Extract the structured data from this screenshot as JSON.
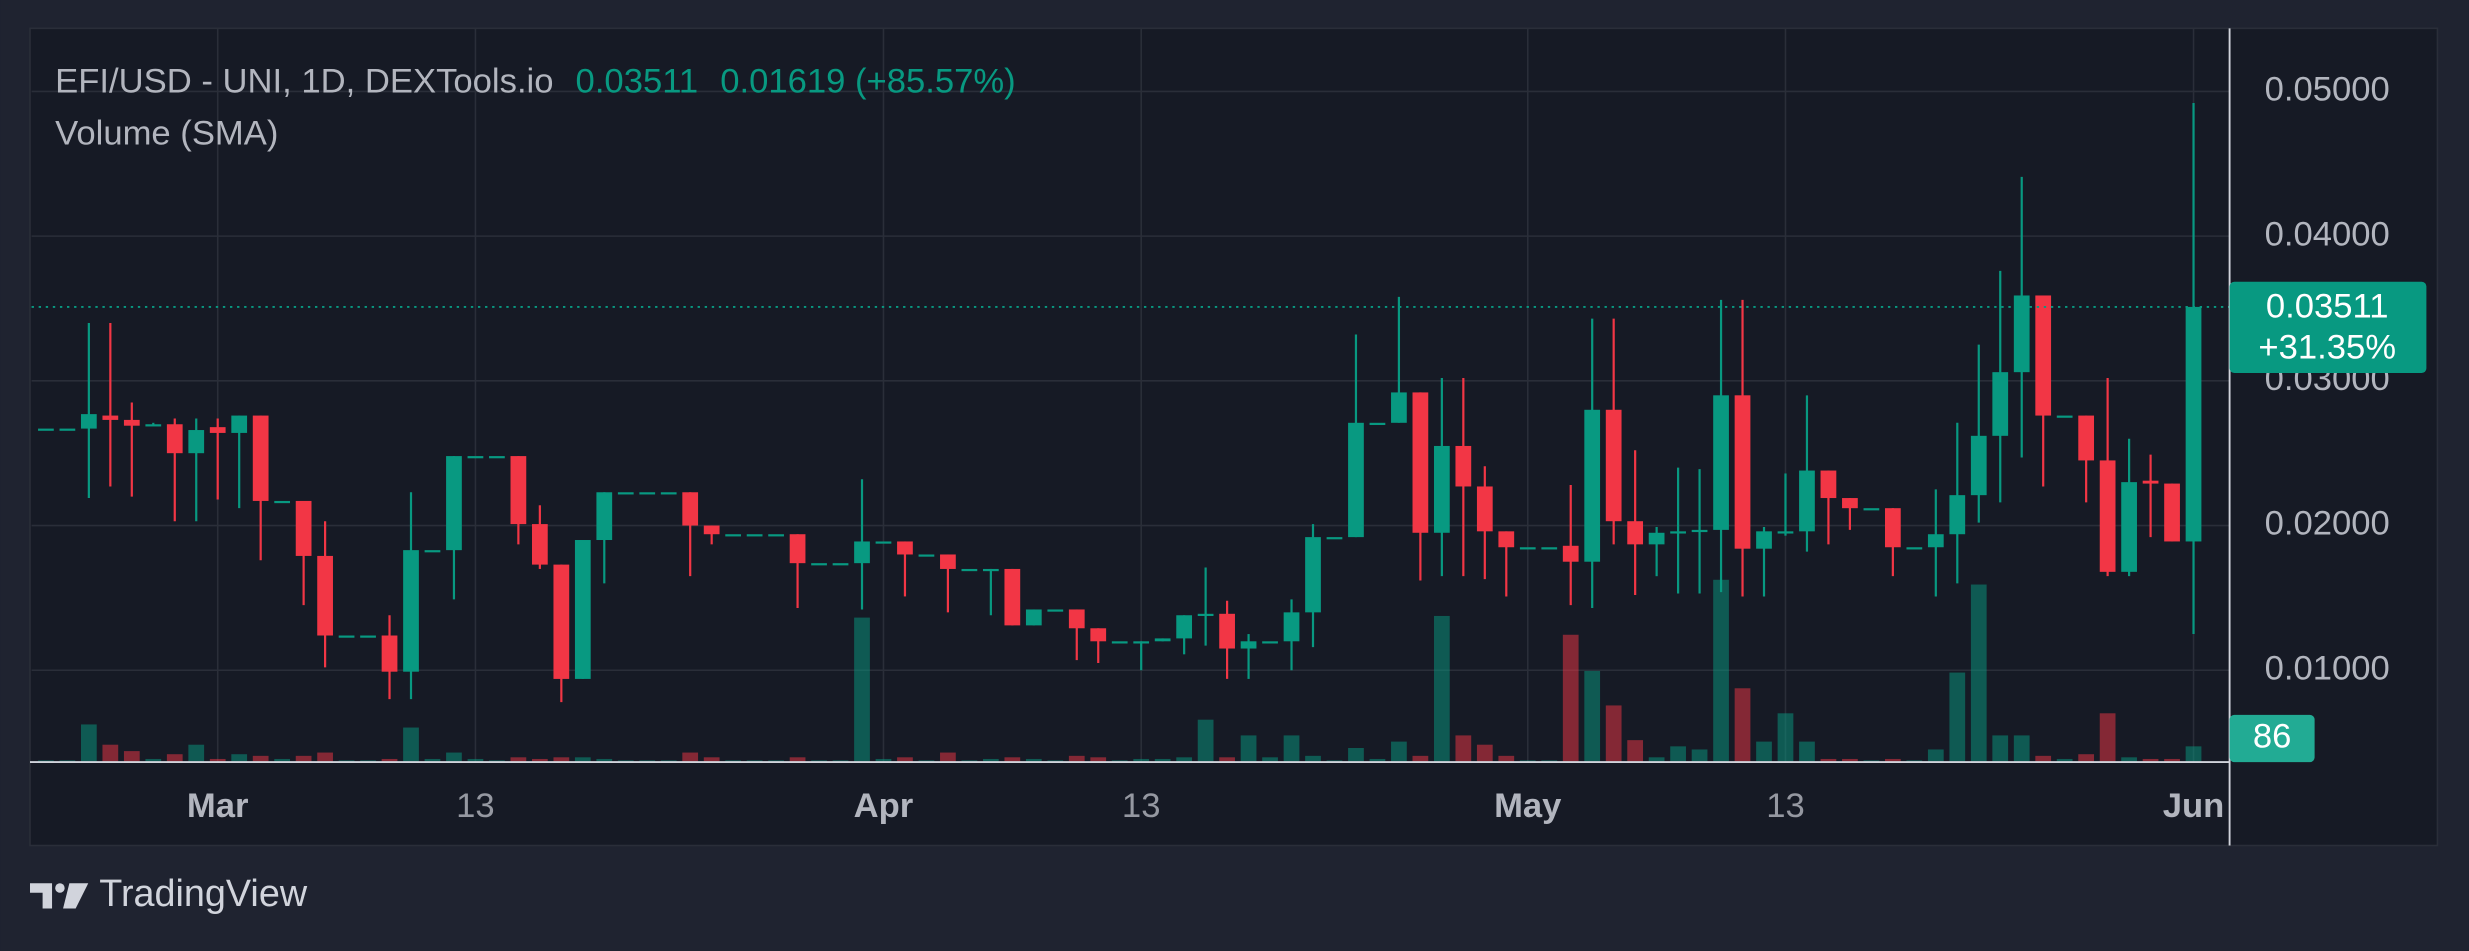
{
  "chart_data": {
    "type": "candlestick",
    "title": "EFI/USD - UNI, 1D, DEXTools.io",
    "change_label": "0.01619 (+85.57%)",
    "volume_label": "Volume (SMA)",
    "last_change_label": "+31.35%",
    "brand": "TradingView",
    "up_color": "#089981",
    "down_color": "#f23645",
    "grid": true,
    "x": [
      "Feb 21",
      "Feb 22",
      "Feb 23",
      "Feb 24",
      "Feb 25",
      "Feb 26",
      "Feb 27",
      "Feb 28",
      "Mar 1",
      "Mar 2",
      "Mar 3",
      "Mar 4",
      "Mar 5",
      "Mar 6",
      "Mar 7",
      "Mar 8",
      "Mar 9",
      "Mar 10",
      "Mar 11",
      "Mar 12",
      "Mar 13",
      "Mar 14",
      "Mar 15",
      "Mar 16",
      "Mar 17",
      "Mar 18",
      "Mar 19",
      "Mar 20",
      "Mar 21",
      "Mar 22",
      "Mar 23",
      "Mar 24",
      "Mar 25",
      "Mar 26",
      "Mar 27",
      "Mar 28",
      "Mar 29",
      "Mar 30",
      "Mar 31",
      "Apr 1",
      "Apr 2",
      "Apr 3",
      "Apr 4",
      "Apr 5",
      "Apr 6",
      "Apr 7",
      "Apr 8",
      "Apr 9",
      "Apr 10",
      "Apr 11",
      "Apr 12",
      "Apr 13",
      "Apr 14",
      "Apr 15",
      "Apr 16",
      "Apr 17",
      "Apr 18",
      "Apr 19",
      "Apr 20",
      "Apr 21",
      "Apr 22",
      "Apr 23",
      "Apr 24",
      "Apr 25",
      "Apr 26",
      "Apr 27",
      "Apr 28",
      "Apr 29",
      "Apr 30",
      "May 1",
      "May 2",
      "May 3",
      "May 4",
      "May 5",
      "May 6",
      "May 7",
      "May 8",
      "May 9",
      "May 10",
      "May 11",
      "May 12",
      "May 13",
      "May 14",
      "May 15",
      "May 16",
      "May 17",
      "May 18",
      "May 19",
      "May 20",
      "May 21",
      "May 22",
      "May 23",
      "May 24",
      "May 25",
      "May 26",
      "May 27",
      "May 28",
      "May 29",
      "May 30",
      "May 31",
      "Jun 1"
    ],
    "open": [
      0.0267,
      0.0267,
      0.0267,
      0.0276,
      0.0273,
      0.027,
      0.027,
      0.025,
      0.0268,
      0.0264,
      0.0276,
      0.0217,
      0.0217,
      0.0179,
      0.0124,
      0.0124,
      0.0124,
      0.0099,
      0.0183,
      0.0183,
      0.0248,
      0.0248,
      0.0248,
      0.0201,
      0.0173,
      0.0094,
      0.019,
      0.0223,
      0.0223,
      0.0223,
      0.0223,
      0.02,
      0.0194,
      0.0194,
      0.0194,
      0.0194,
      0.0174,
      0.0174,
      0.0174,
      0.0189,
      0.0189,
      0.018,
      0.018,
      0.017,
      0.017,
      0.017,
      0.0131,
      0.0142,
      0.0142,
      0.0129,
      0.012,
      0.012,
      0.012,
      0.0122,
      0.0138,
      0.0139,
      0.0115,
      0.012,
      0.012,
      0.014,
      0.0192,
      0.0192,
      0.0271,
      0.0271,
      0.0292,
      0.0195,
      0.0255,
      0.0227,
      0.0196,
      0.0185,
      0.0185,
      0.0186,
      0.0175,
      0.028,
      0.0203,
      0.0187,
      0.0195,
      0.0196,
      0.0197,
      0.029,
      0.0184,
      0.0196,
      0.0196,
      0.0238,
      0.0219,
      0.0212,
      0.0212,
      0.0185,
      0.0185,
      0.0194,
      0.0221,
      0.0262,
      0.0306,
      0.0359,
      0.0276,
      0.0276,
      0.0245,
      0.0168,
      0.0231,
      0.0229,
      0.0189
    ],
    "high": [
      0.0267,
      0.0267,
      0.034,
      0.034,
      0.0285,
      0.0271,
      0.0274,
      0.0274,
      0.0274,
      0.0276,
      0.0276,
      0.0217,
      0.0217,
      0.0203,
      0.0124,
      0.0124,
      0.0138,
      0.0223,
      0.0183,
      0.0248,
      0.0248,
      0.0248,
      0.0248,
      0.0214,
      0.0173,
      0.019,
      0.0223,
      0.0223,
      0.0223,
      0.0223,
      0.0223,
      0.02,
      0.0194,
      0.0194,
      0.0194,
      0.0194,
      0.0174,
      0.0174,
      0.0232,
      0.0189,
      0.0189,
      0.018,
      0.018,
      0.017,
      0.017,
      0.017,
      0.0142,
      0.0142,
      0.0142,
      0.0129,
      0.012,
      0.012,
      0.0122,
      0.0138,
      0.0171,
      0.0148,
      0.0125,
      0.012,
      0.0149,
      0.0201,
      0.0192,
      0.0332,
      0.0271,
      0.0358,
      0.0292,
      0.0302,
      0.0302,
      0.0241,
      0.0196,
      0.0185,
      0.0185,
      0.0228,
      0.0343,
      0.0343,
      0.0252,
      0.0199,
      0.024,
      0.0239,
      0.0356,
      0.0356,
      0.0199,
      0.0236,
      0.029,
      0.0238,
      0.0219,
      0.0212,
      0.0212,
      0.0185,
      0.0225,
      0.0271,
      0.0325,
      0.0376,
      0.0441,
      0.0359,
      0.0276,
      0.0276,
      0.0302,
      0.026,
      0.0249,
      0.0229,
      0.0492
    ],
    "low": [
      0.0267,
      0.0267,
      0.0219,
      0.0227,
      0.022,
      0.0269,
      0.0203,
      0.0203,
      0.0218,
      0.0212,
      0.0176,
      0.0217,
      0.0145,
      0.0102,
      0.0124,
      0.0124,
      0.008,
      0.008,
      0.0183,
      0.0149,
      0.0248,
      0.0248,
      0.0187,
      0.017,
      0.0078,
      0.0094,
      0.016,
      0.0223,
      0.0223,
      0.0223,
      0.0165,
      0.0187,
      0.0194,
      0.0194,
      0.0194,
      0.0143,
      0.0174,
      0.0174,
      0.0142,
      0.0189,
      0.0151,
      0.018,
      0.014,
      0.017,
      0.0138,
      0.0131,
      0.0131,
      0.0142,
      0.0107,
      0.0105,
      0.012,
      0.01,
      0.012,
      0.0111,
      0.0117,
      0.0094,
      0.0094,
      0.012,
      0.01,
      0.0116,
      0.0192,
      0.0192,
      0.0271,
      0.0271,
      0.0162,
      0.0165,
      0.0165,
      0.0163,
      0.0151,
      0.0185,
      0.0185,
      0.0145,
      0.0143,
      0.0187,
      0.0152,
      0.0165,
      0.0153,
      0.0153,
      0.0154,
      0.0151,
      0.0151,
      0.0193,
      0.0182,
      0.0187,
      0.0197,
      0.0212,
      0.0165,
      0.0185,
      0.0151,
      0.016,
      0.0202,
      0.0216,
      0.0247,
      0.0227,
      0.0276,
      0.0216,
      0.0165,
      0.0165,
      0.0192,
      0.0189,
      0.0125
    ],
    "close": [
      0.0267,
      0.0267,
      0.0277,
      0.0273,
      0.0269,
      0.027,
      0.025,
      0.0266,
      0.0264,
      0.0276,
      0.0217,
      0.0217,
      0.0179,
      0.0124,
      0.0124,
      0.0124,
      0.0099,
      0.0183,
      0.0183,
      0.0248,
      0.0248,
      0.0248,
      0.0201,
      0.0173,
      0.0094,
      0.019,
      0.0223,
      0.0223,
      0.0223,
      0.0223,
      0.02,
      0.0194,
      0.0194,
      0.0194,
      0.0194,
      0.0174,
      0.0174,
      0.0174,
      0.0189,
      0.0189,
      0.018,
      0.018,
      0.017,
      0.017,
      0.017,
      0.0131,
      0.0142,
      0.0142,
      0.0129,
      0.012,
      0.012,
      0.012,
      0.0122,
      0.0138,
      0.0139,
      0.0115,
      0.012,
      0.012,
      0.014,
      0.0192,
      0.0192,
      0.0271,
      0.0271,
      0.0292,
      0.0195,
      0.0255,
      0.0227,
      0.0196,
      0.0185,
      0.0185,
      0.0185,
      0.0175,
      0.028,
      0.0203,
      0.0187,
      0.0195,
      0.0196,
      0.0197,
      0.029,
      0.0184,
      0.0196,
      0.0196,
      0.0238,
      0.0219,
      0.0212,
      0.0212,
      0.0185,
      0.0185,
      0.0194,
      0.0221,
      0.0262,
      0.0306,
      0.0359,
      0.0276,
      0.0276,
      0.0245,
      0.0168,
      0.023,
      0.0229,
      0.0189,
      0.03511
    ],
    "volume": [
      9,
      9,
      206,
      95,
      60,
      17,
      43,
      95,
      17,
      43,
      34,
      17,
      34,
      52,
      9,
      9,
      17,
      189,
      17,
      52,
      17,
      9,
      26,
      17,
      26,
      26,
      17,
      9,
      9,
      9,
      52,
      26,
      9,
      9,
      9,
      26,
      9,
      9,
      791,
      17,
      26,
      9,
      52,
      9,
      17,
      26,
      17,
      9,
      34,
      26,
      9,
      17,
      17,
      26,
      232,
      26,
      146,
      26,
      146,
      34,
      9,
      77,
      17,
      112,
      34,
      800,
      146,
      95,
      34,
      9,
      9,
      697,
      499,
      310,
      120,
      26,
      86,
      69,
      998,
      404,
      112,
      267,
      112,
      17,
      17,
      9,
      17,
      9,
      69,
      490,
      972,
      146,
      146,
      34,
      17,
      43,
      267,
      26,
      17,
      17,
      86
    ],
    "ylim": [
      0.003654,
      0.054144
    ],
    "yticks": [
      {
        "value": 0.01,
        "label": "0.01000"
      },
      {
        "value": 0.02,
        "label": "0.02000"
      },
      {
        "value": 0.03,
        "label": "0.03000"
      },
      {
        "value": 0.04,
        "label": "0.04000"
      },
      {
        "value": 0.05,
        "label": "0.05000"
      }
    ],
    "volume_ylim": [
      0,
      4000
    ],
    "xticks": [
      {
        "value": "Mar 1",
        "label": "Mar"
      },
      {
        "value": "Mar 13",
        "label": "13"
      },
      {
        "value": "Apr 1",
        "label": "Apr"
      },
      {
        "value": "Apr 13",
        "label": "13"
      },
      {
        "value": "May 1",
        "label": "May"
      },
      {
        "value": "May 13",
        "label": "13"
      },
      {
        "value": "Jun 1",
        "label": "Jun"
      }
    ]
  }
}
